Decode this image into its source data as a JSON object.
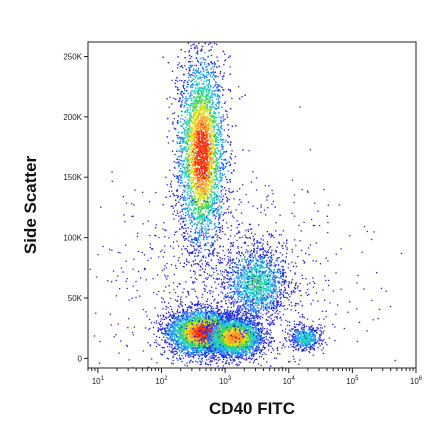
{
  "chart_data": {
    "type": "scatter",
    "style": "density pseudocolor dot plot",
    "title": "",
    "xlabel": "CD40 FITC",
    "ylabel": "Side Scatter",
    "x_scale": "log",
    "xlim": [
      7,
      1000000
    ],
    "ylim": [
      -8000,
      262000
    ],
    "x_ticks": [
      {
        "value": 10,
        "base": "10",
        "exp": "1"
      },
      {
        "value": 100,
        "base": "10",
        "exp": "2"
      },
      {
        "value": 1000,
        "base": "10",
        "exp": "3"
      },
      {
        "value": 10000,
        "base": "10",
        "exp": "4"
      },
      {
        "value": 100000,
        "base": "10",
        "exp": "5"
      },
      {
        "value": 1000000,
        "base": "10",
        "exp": "6"
      }
    ],
    "y_ticks": [
      {
        "value": 0,
        "label": "0"
      },
      {
        "value": 50000,
        "label": "50K"
      },
      {
        "value": 100000,
        "label": "100K"
      },
      {
        "value": 150000,
        "label": "150K"
      },
      {
        "value": 200000,
        "label": "200K"
      },
      {
        "value": 250000,
        "label": "250K"
      }
    ],
    "density_colors": [
      "#2222dd",
      "#1f8fff",
      "#1fd0d0",
      "#3fd060",
      "#d8e020",
      "#ffa020",
      "#ff3010"
    ],
    "populations": [
      {
        "x_center": 420,
        "y_center": 170000,
        "x_spread_decades": 0.18,
        "y_spread": 38000,
        "count": 5200,
        "peak_density": 1.0
      },
      {
        "x_center": 450,
        "y_center": 22000,
        "x_spread_decades": 0.28,
        "y_spread": 9000,
        "count": 4200,
        "peak_density": 1.0
      },
      {
        "x_center": 1400,
        "y_center": 18000,
        "x_spread_decades": 0.22,
        "y_spread": 8000,
        "count": 2600,
        "peak_density": 0.85
      },
      {
        "x_center": 3000,
        "y_center": 62000,
        "x_spread_decades": 0.25,
        "y_spread": 15000,
        "count": 1500,
        "peak_density": 0.45
      },
      {
        "x_center": 18000,
        "y_center": 17000,
        "x_spread_decades": 0.12,
        "y_spread": 5000,
        "count": 500,
        "peak_density": 0.4
      },
      {
        "x_center": 1200,
        "y_center": 60000,
        "x_spread_decades": 0.9,
        "y_spread": 45000,
        "count": 1100,
        "peak_density": 0.1
      }
    ],
    "grid": false,
    "legend": "none"
  }
}
